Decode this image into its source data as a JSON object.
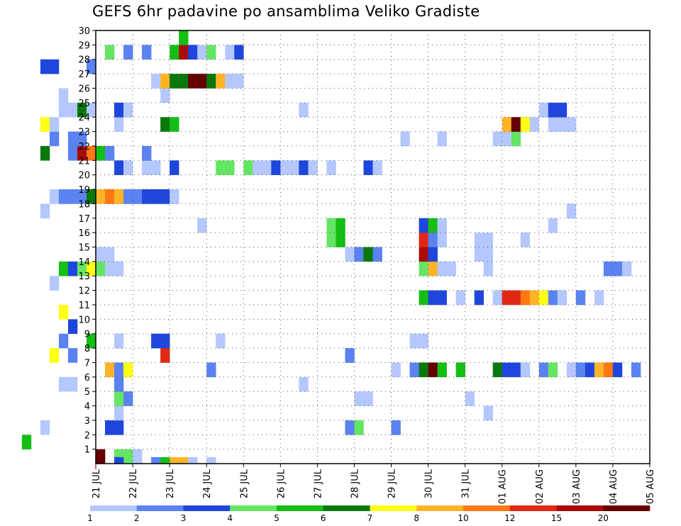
{
  "chart_data": {
    "type": "heatmap",
    "title": "GEFS 6hr padavine po ansamblima Veliko Gradiste",
    "xlabel": "",
    "ylabel": "",
    "x_tick_labels": [
      "21 JUL",
      "22 JUL",
      "23 JUL",
      "24 JUL",
      "25 JUL",
      "26 JUL",
      "27 JUL",
      "28 JUL",
      "29 JUL",
      "30 JUL",
      "31 JUL",
      "01 AUG",
      "02 AUG",
      "03 AUG",
      "04 AUG",
      "05 AUG"
    ],
    "y_tick_labels": [
      "1",
      "2",
      "3",
      "4",
      "5",
      "6",
      "7",
      "8",
      "9",
      "10",
      "11",
      "12",
      "13",
      "14",
      "15",
      "16",
      "17",
      "18",
      "19",
      "20",
      "21",
      "22",
      "23",
      "24",
      "25",
      "26",
      "27",
      "28",
      "29",
      "30"
    ],
    "grid": true,
    "colorbar": {
      "labels": [
        "1",
        "2",
        "3",
        "4",
        "5",
        "6",
        "7",
        "8",
        "10",
        "12",
        "15",
        "20"
      ],
      "colors": [
        "#b4c8ff",
        "#5a82f0",
        "#1e46dc",
        "#64e664",
        "#14be14",
        "#0a780a",
        "#ffff14",
        "#ffb428",
        "#ff7814",
        "#e12814",
        "#aa0a0a",
        "#640000"
      ]
    },
    "units": "member rows 1-30 vs 6-hourly steps from 21 JUL to 05 AUG; cell value = color class index",
    "cells": [
      [
        1,
        21,
        12
      ],
      [
        1,
        21.5,
        4
      ],
      [
        1,
        21.75,
        4
      ],
      [
        1,
        22,
        1
      ],
      [
        2,
        13,
        1
      ],
      [
        2,
        19,
        5
      ],
      [
        2,
        59.5,
        1
      ],
      [
        2,
        59.75,
        2
      ],
      [
        2,
        60,
        3
      ],
      [
        3,
        19.5,
        1
      ],
      [
        3,
        21.25,
        3
      ],
      [
        3,
        21.5,
        3
      ],
      [
        3,
        27.75,
        2
      ],
      [
        3,
        28,
        4
      ],
      [
        3,
        29,
        2
      ],
      [
        4,
        21.5,
        1
      ],
      [
        4,
        31.5,
        1
      ],
      [
        5,
        21.5,
        4
      ],
      [
        5,
        21.75,
        2
      ],
      [
        5,
        28,
        1
      ],
      [
        5,
        28.25,
        1
      ],
      [
        5,
        31,
        1
      ],
      [
        6,
        20,
        1
      ],
      [
        6,
        20.25,
        1
      ],
      [
        6,
        21.5,
        2
      ],
      [
        6,
        26.5,
        1
      ],
      [
        7,
        21.25,
        8
      ],
      [
        7,
        21.5,
        2
      ],
      [
        7,
        21.75,
        7
      ],
      [
        7,
        24,
        2
      ],
      [
        7,
        29,
        1
      ],
      [
        7,
        29.5,
        2
      ],
      [
        7,
        29.75,
        6
      ],
      [
        7,
        30,
        12
      ],
      [
        7,
        30.25,
        5
      ],
      [
        7,
        30.75,
        5
      ],
      [
        7,
        31.75,
        6
      ],
      [
        7,
        32,
        3
      ],
      [
        7,
        32.25,
        3
      ],
      [
        7,
        32.5,
        1
      ],
      [
        7,
        33,
        2
      ],
      [
        7,
        33.25,
        4
      ],
      [
        7,
        33.75,
        1
      ],
      [
        7,
        34,
        2
      ],
      [
        7,
        34.25,
        3
      ],
      [
        7,
        34.5,
        8
      ],
      [
        7,
        34.75,
        9
      ],
      [
        7,
        35,
        3
      ],
      [
        7,
        35.5,
        2
      ],
      [
        8,
        19.75,
        7
      ],
      [
        8,
        20.25,
        2
      ],
      [
        8,
        22.75,
        10
      ],
      [
        8,
        27.75,
        2
      ],
      [
        9,
        20,
        2
      ],
      [
        9,
        20.75,
        5
      ],
      [
        9,
        21.5,
        1
      ],
      [
        9,
        22.5,
        3
      ],
      [
        9,
        22.75,
        3
      ],
      [
        9,
        24.25,
        1
      ],
      [
        9,
        29.5,
        1
      ],
      [
        9,
        29.75,
        1
      ],
      [
        10,
        16.5,
        1
      ],
      [
        10,
        16.75,
        1
      ],
      [
        10,
        17,
        2
      ],
      [
        10,
        17.25,
        3
      ],
      [
        10,
        17.5,
        4
      ],
      [
        10,
        17.75,
        1
      ],
      [
        10,
        20.25,
        3
      ],
      [
        11,
        20,
        7
      ],
      [
        12,
        29.75,
        5
      ],
      [
        12,
        30,
        3
      ],
      [
        12,
        30.25,
        3
      ],
      [
        12,
        30.75,
        1
      ],
      [
        12,
        31.25,
        3
      ],
      [
        12,
        31.75,
        1
      ],
      [
        12,
        32,
        10
      ],
      [
        12,
        32.25,
        10
      ],
      [
        12,
        32.5,
        9
      ],
      [
        12,
        32.75,
        8
      ],
      [
        12,
        33,
        7
      ],
      [
        12,
        33.25,
        2
      ],
      [
        12,
        33.5,
        1
      ],
      [
        12,
        34,
        2
      ],
      [
        12,
        34.5,
        1
      ],
      [
        13,
        19.75,
        1
      ],
      [
        14,
        17.75,
        1
      ],
      [
        14,
        20,
        5
      ],
      [
        14,
        20.25,
        3
      ],
      [
        14,
        20.5,
        4
      ],
      [
        14,
        20.75,
        7
      ],
      [
        14,
        21,
        4
      ],
      [
        14,
        21.25,
        1
      ],
      [
        14,
        21.5,
        1
      ],
      [
        14,
        29.75,
        4
      ],
      [
        14,
        30,
        8
      ],
      [
        14,
        30.25,
        1
      ],
      [
        14,
        30.5,
        1
      ],
      [
        14,
        31.5,
        1
      ],
      [
        14,
        34.75,
        2
      ],
      [
        14,
        35,
        2
      ],
      [
        14,
        35.25,
        1
      ],
      [
        15,
        21,
        1
      ],
      [
        15,
        21.25,
        1
      ],
      [
        15,
        27.75,
        1
      ],
      [
        15,
        28,
        2
      ],
      [
        15,
        28.25,
        6
      ],
      [
        15,
        28.5,
        2
      ],
      [
        15,
        29.75,
        11
      ],
      [
        15,
        30,
        3
      ],
      [
        15,
        31.25,
        1
      ],
      [
        15,
        31.5,
        1
      ],
      [
        16,
        27.25,
        4
      ],
      [
        16,
        27.5,
        5
      ],
      [
        16,
        29.75,
        10
      ],
      [
        16,
        30,
        2
      ],
      [
        16,
        30.25,
        1
      ],
      [
        16,
        31.25,
        1
      ],
      [
        16,
        31.5,
        1
      ],
      [
        16,
        32.5,
        1
      ],
      [
        17,
        23.75,
        1
      ],
      [
        17,
        27.25,
        4
      ],
      [
        17,
        27.5,
        5
      ],
      [
        17,
        29.75,
        3
      ],
      [
        17,
        30,
        5
      ],
      [
        17,
        30.25,
        1
      ],
      [
        17,
        33.25,
        1
      ],
      [
        18,
        19.5,
        1
      ],
      [
        18,
        33.75,
        1
      ],
      [
        19,
        19.75,
        1
      ],
      [
        19,
        20,
        2
      ],
      [
        19,
        20.25,
        2
      ],
      [
        19,
        20.5,
        2
      ],
      [
        19,
        20.75,
        6
      ],
      [
        19,
        21,
        8
      ],
      [
        19,
        21.25,
        9
      ],
      [
        19,
        21.5,
        8
      ],
      [
        19,
        21.75,
        2
      ],
      [
        19,
        22,
        2
      ],
      [
        19,
        22.25,
        3
      ],
      [
        19,
        22.5,
        3
      ],
      [
        19,
        22.75,
        3
      ],
      [
        19,
        23,
        1
      ],
      [
        21,
        21.5,
        3
      ],
      [
        21,
        21.75,
        1
      ],
      [
        21,
        22.25,
        1
      ],
      [
        21,
        22.5,
        1
      ],
      [
        21,
        23,
        3
      ],
      [
        21,
        24.25,
        4
      ],
      [
        21,
        24.5,
        4
      ],
      [
        21,
        25,
        4
      ],
      [
        21,
        25.25,
        1
      ],
      [
        21,
        25.5,
        1
      ],
      [
        21,
        25.75,
        3
      ],
      [
        21,
        26,
        1
      ],
      [
        21,
        26.25,
        1
      ],
      [
        21,
        26.5,
        3
      ],
      [
        21,
        26.75,
        1
      ],
      [
        21,
        27.25,
        1
      ],
      [
        21,
        28.25,
        3
      ],
      [
        21,
        28.5,
        1
      ],
      [
        22,
        17.75,
        1
      ],
      [
        22,
        18,
        1
      ],
      [
        22,
        19.5,
        6
      ],
      [
        22,
        20.25,
        2
      ],
      [
        22,
        20.5,
        11
      ],
      [
        22,
        20.75,
        9
      ],
      [
        22,
        21,
        5
      ],
      [
        22,
        21.25,
        2
      ],
      [
        22,
        22.25,
        2
      ],
      [
        23,
        19.75,
        2
      ],
      [
        23,
        20.25,
        2
      ],
      [
        23,
        20.5,
        2
      ],
      [
        23,
        29.25,
        1
      ],
      [
        23,
        30.25,
        1
      ],
      [
        23,
        31.75,
        1
      ],
      [
        23,
        32,
        1
      ],
      [
        23,
        32.25,
        4
      ],
      [
        24,
        19.5,
        7
      ],
      [
        24,
        19.75,
        1
      ],
      [
        24,
        21.5,
        1
      ],
      [
        24,
        22.75,
        6
      ],
      [
        24,
        23,
        5
      ],
      [
        24,
        32,
        8
      ],
      [
        24,
        32.25,
        12
      ],
      [
        24,
        32.5,
        7
      ],
      [
        24,
        32.75,
        1
      ],
      [
        24,
        33.25,
        1
      ],
      [
        24,
        33.5,
        1
      ],
      [
        24,
        33.75,
        1
      ],
      [
        25,
        20,
        1
      ],
      [
        25,
        20.25,
        1
      ],
      [
        25,
        20.5,
        6
      ],
      [
        25,
        20.75,
        1
      ],
      [
        25,
        21.5,
        3
      ],
      [
        25,
        21.75,
        1
      ],
      [
        25,
        26.5,
        1
      ],
      [
        25,
        33,
        1
      ],
      [
        25,
        33.25,
        3
      ],
      [
        25,
        33.5,
        3
      ],
      [
        26,
        20,
        1
      ],
      [
        26,
        22.75,
        1
      ],
      [
        27,
        22.5,
        1
      ],
      [
        27,
        22.75,
        8
      ],
      [
        27,
        23,
        6
      ],
      [
        27,
        23.25,
        6
      ],
      [
        27,
        23.5,
        12
      ],
      [
        27,
        23.75,
        12
      ],
      [
        27,
        24,
        6
      ],
      [
        27,
        24.25,
        8
      ],
      [
        27,
        24.5,
        1
      ],
      [
        27,
        24.75,
        1
      ],
      [
        28,
        19.5,
        3
      ],
      [
        28,
        19.75,
        3
      ],
      [
        28,
        20.75,
        2
      ],
      [
        29,
        16,
        1
      ],
      [
        29,
        16.25,
        2
      ],
      [
        29,
        17.25,
        1
      ],
      [
        29,
        21.25,
        4
      ],
      [
        29,
        21.75,
        2
      ],
      [
        29,
        22.25,
        2
      ],
      [
        29,
        23,
        5
      ],
      [
        29,
        23.25,
        11
      ],
      [
        29,
        23.5,
        3
      ],
      [
        29,
        23.75,
        1
      ],
      [
        29,
        24,
        4
      ],
      [
        29,
        24.5,
        1
      ],
      [
        29,
        24.75,
        3
      ],
      [
        30,
        23.25,
        5
      ],
      [
        0,
        21.5,
        3
      ],
      [
        0,
        22.5,
        2
      ],
      [
        0,
        22.75,
        5
      ],
      [
        0,
        23,
        8
      ],
      [
        0,
        23.25,
        8
      ],
      [
        0,
        23.5,
        1
      ],
      [
        0,
        24,
        1
      ]
    ]
  }
}
